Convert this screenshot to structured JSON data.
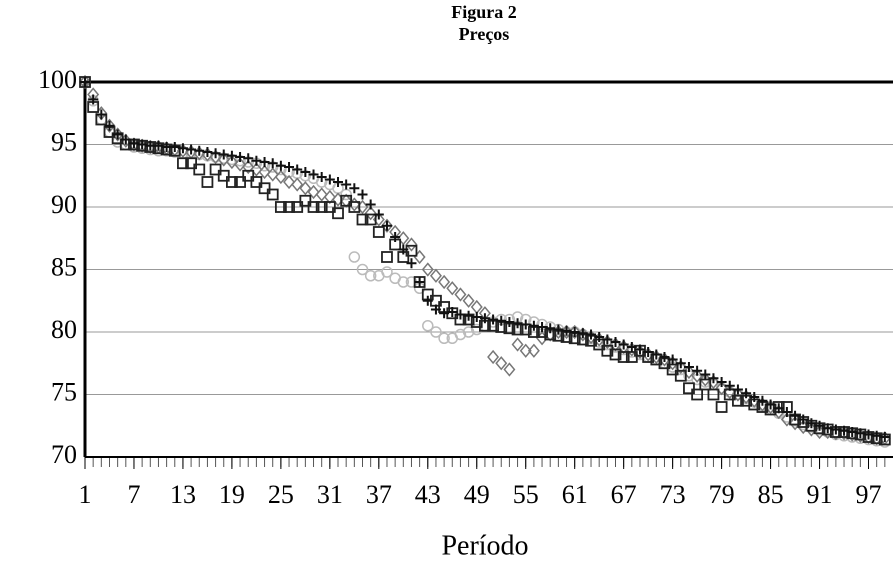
{
  "chart_data": {
    "type": "scatter",
    "title": "Figura 2",
    "subtitle": "Preços",
    "x_label": "Período",
    "xlim": [
      1,
      100
    ],
    "ylim": [
      70,
      100
    ],
    "xticks": [
      1,
      7,
      13,
      19,
      25,
      31,
      37,
      43,
      49,
      55,
      61,
      67,
      73,
      79,
      85,
      91,
      97
    ],
    "yticks": [
      70,
      75,
      80,
      85,
      90,
      95,
      100
    ],
    "grid": true,
    "x": [
      1,
      2,
      3,
      4,
      5,
      6,
      7,
      8,
      9,
      10,
      11,
      12,
      13,
      14,
      15,
      16,
      17,
      18,
      19,
      20,
      21,
      22,
      23,
      24,
      25,
      26,
      27,
      28,
      29,
      30,
      31,
      32,
      33,
      34,
      35,
      36,
      37,
      38,
      39,
      40,
      41,
      42,
      43,
      44,
      45,
      46,
      47,
      48,
      49,
      50,
      51,
      52,
      53,
      54,
      55,
      56,
      57,
      58,
      59,
      60,
      61,
      62,
      63,
      64,
      65,
      66,
      67,
      68,
      69,
      70,
      71,
      72,
      73,
      74,
      75,
      76,
      77,
      78,
      79,
      80,
      81,
      82,
      83,
      84,
      85,
      86,
      87,
      88,
      89,
      90,
      91,
      92,
      93,
      94,
      95,
      96,
      97,
      98,
      99
    ],
    "series": [
      {
        "marker": "circle",
        "color": "#bbbbbb",
        "values": [
          100,
          98.5,
          97.0,
          96.0,
          95.2,
          95.0,
          94.8,
          94.7,
          94.6,
          94.5,
          94.5,
          94.4,
          94.3,
          94.3,
          94.2,
          94.1,
          94.0,
          93.9,
          93.8,
          93.7,
          93.6,
          93.5,
          93.3,
          93.2,
          93.0,
          92.8,
          92.7,
          92.5,
          92.3,
          92.0,
          91.8,
          91.5,
          91.0,
          86.0,
          85.0,
          84.5,
          84.5,
          84.8,
          84.3,
          84.0,
          84.0,
          83.5,
          80.5,
          80.0,
          79.5,
          79.5,
          79.8,
          80.0,
          80.2,
          80.5,
          80.8,
          81.0,
          81.0,
          81.2,
          81.0,
          80.8,
          80.6,
          80.4,
          80.2,
          80.0,
          80.0,
          79.8,
          79.5,
          79.2,
          79.0,
          78.8,
          78.6,
          78.4,
          78.2,
          78.0,
          77.8,
          77.5,
          77.2,
          77.0,
          76.5,
          76.2,
          76.0,
          75.8,
          75.5,
          75.2,
          75.0,
          74.7,
          74.4,
          74.1,
          73.8,
          73.5,
          73.2,
          72.9,
          72.6,
          72.4,
          72.2,
          72.0,
          71.8,
          71.7,
          71.6,
          71.5,
          71.4,
          71.3,
          71.2
        ]
      },
      {
        "marker": "diamond",
        "color": "#777777",
        "values": [
          100,
          99.0,
          97.5,
          96.5,
          95.8,
          95.3,
          95.0,
          94.9,
          94.8,
          94.8,
          94.7,
          94.6,
          94.5,
          94.4,
          94.3,
          94.2,
          94.0,
          93.8,
          93.6,
          93.4,
          93.2,
          93.0,
          92.8,
          92.6,
          92.4,
          92.0,
          91.8,
          91.5,
          91.2,
          91.0,
          90.8,
          90.6,
          90.5,
          90.2,
          90.0,
          89.5,
          89.0,
          88.5,
          88.0,
          87.5,
          87.0,
          86.0,
          85.0,
          84.5,
          84.0,
          83.5,
          83.0,
          82.5,
          82.0,
          81.5,
          78.0,
          77.5,
          77.0,
          79.0,
          78.5,
          78.5,
          79.5,
          79.8,
          80.0,
          80.0,
          80.0,
          79.8,
          79.6,
          79.4,
          79.2,
          79.0,
          78.8,
          78.6,
          78.4,
          78.2,
          78.0,
          77.8,
          77.5,
          77.2,
          76.8,
          76.5,
          76.2,
          76.0,
          75.5,
          75.2,
          75.0,
          74.8,
          74.5,
          74.2,
          74.0,
          73.6,
          73.0,
          72.7,
          72.4,
          72.2,
          72.0,
          72.0,
          71.9,
          71.9,
          71.8,
          71.7,
          71.6,
          71.5,
          71.5
        ]
      },
      {
        "marker": "square",
        "color": "#222222",
        "values": [
          100,
          98.0,
          97.0,
          96.0,
          95.5,
          95.0,
          95.0,
          94.9,
          94.8,
          94.7,
          94.6,
          94.5,
          93.5,
          93.5,
          93.0,
          92.0,
          93.0,
          92.5,
          92.0,
          92.0,
          92.5,
          92.0,
          91.5,
          91.0,
          90.0,
          90.0,
          90.0,
          90.5,
          90.0,
          90.0,
          90.0,
          89.5,
          90.5,
          90.0,
          89.0,
          89.0,
          88.0,
          86.0,
          87.0,
          86.0,
          86.5,
          84.0,
          83.0,
          82.5,
          82.0,
          81.5,
          81.0,
          81.0,
          80.8,
          80.5,
          80.5,
          80.4,
          80.3,
          80.2,
          80.2,
          80.0,
          80.0,
          79.8,
          79.7,
          79.6,
          79.5,
          79.4,
          79.3,
          79.0,
          78.5,
          78.2,
          78.0,
          78.0,
          78.5,
          78.0,
          77.8,
          77.5,
          77.0,
          76.5,
          75.5,
          75.0,
          75.8,
          75.0,
          74.0,
          75.0,
          74.5,
          74.5,
          74.2,
          74.0,
          73.8,
          74.0,
          74.0,
          73.0,
          72.8,
          72.5,
          72.3,
          72.2,
          72.0,
          72.0,
          71.9,
          71.8,
          71.6,
          71.5,
          71.4
        ]
      },
      {
        "marker": "plus",
        "color": "#111111",
        "values": [
          100,
          98.6,
          97.4,
          96.5,
          95.8,
          95.4,
          95.1,
          95.0,
          94.9,
          94.9,
          94.8,
          94.8,
          94.7,
          94.6,
          94.5,
          94.4,
          94.3,
          94.2,
          94.1,
          94.0,
          93.9,
          93.7,
          93.6,
          93.5,
          93.3,
          93.2,
          93.0,
          92.8,
          92.6,
          92.4,
          92.2,
          92.0,
          91.8,
          91.5,
          91.0,
          90.2,
          89.4,
          88.5,
          87.6,
          86.6,
          85.5,
          84.0,
          82.5,
          81.8,
          81.5,
          81.6,
          81.4,
          81.3,
          81.2,
          81.1,
          81.0,
          80.9,
          80.8,
          80.7,
          80.6,
          80.5,
          80.4,
          80.3,
          80.2,
          80.1,
          80.0,
          79.9,
          79.8,
          79.6,
          79.4,
          79.2,
          79.0,
          78.8,
          78.6,
          78.4,
          78.2,
          78.0,
          77.8,
          77.5,
          77.2,
          76.9,
          76.6,
          76.3,
          76.0,
          75.7,
          75.4,
          75.1,
          74.8,
          74.5,
          74.2,
          73.9,
          73.6,
          73.3,
          73.0,
          72.7,
          72.5,
          72.3,
          72.2,
          72.1,
          72.0,
          71.9,
          71.8,
          71.7,
          71.6
        ]
      }
    ]
  }
}
